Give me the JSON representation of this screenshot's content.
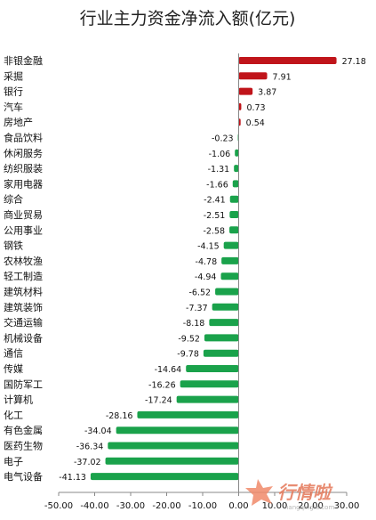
{
  "chart_data": {
    "type": "bar",
    "orientation": "horizontal",
    "title": "行业主力资金净流入额(亿元)",
    "categories": [
      "非银金融",
      "采掘",
      "银行",
      "汽车",
      "房地产",
      "食品饮料",
      "休闲服务",
      "纺织服装",
      "家用电器",
      "综合",
      "商业贸易",
      "公用事业",
      "钢铁",
      "农林牧渔",
      "轻工制造",
      "建筑材料",
      "建筑装饰",
      "交通运输",
      "机械设备",
      "通信",
      "传媒",
      "国防军工",
      "计算机",
      "化工",
      "有色金属",
      "医药生物",
      "电子",
      "电气设备"
    ],
    "values": [
      27.18,
      7.91,
      3.87,
      0.73,
      0.54,
      -0.23,
      -1.06,
      -1.31,
      -1.66,
      -2.41,
      -2.51,
      -2.58,
      -4.15,
      -4.78,
      -4.94,
      -6.52,
      -7.37,
      -8.18,
      -9.52,
      -9.78,
      -14.64,
      -16.26,
      -17.24,
      -28.16,
      -34.04,
      -36.34,
      -37.02,
      -41.13
    ],
    "value_labels": [
      "27.18",
      "7.91",
      "3.87",
      "0.73",
      "0.54",
      "-0.23",
      "-1.06",
      "-1.31",
      "-1.66",
      "-2.41",
      "-2.51",
      "-2.58",
      "-4.15",
      "-4.78",
      "-4.94",
      "-6.52",
      "-7.37",
      "-8.18",
      "-9.52",
      "-9.78",
      "-14.64",
      "-16.26",
      "-17.24",
      "-28.16",
      "-34.04",
      "-36.34",
      "-37.02",
      "-41.13"
    ],
    "xlim": [
      -50,
      30
    ],
    "xticks": [
      "-50.00",
      "-40.00",
      "-30.00",
      "-20.00",
      "-10.00",
      "0.00",
      "10.00",
      "20.00",
      "30.00"
    ],
    "xtick_values": [
      -50,
      -40,
      -30,
      -20,
      -10,
      0,
      10,
      20,
      30
    ],
    "grid": false,
    "legend": "none",
    "colors": {
      "positive": "#c0141a",
      "negative": "#1aa24b",
      "axis": "#888888"
    }
  },
  "watermark": {
    "text": "行情啦",
    "subtext": "hangqingla.com",
    "icon": "star-logo-icon"
  }
}
